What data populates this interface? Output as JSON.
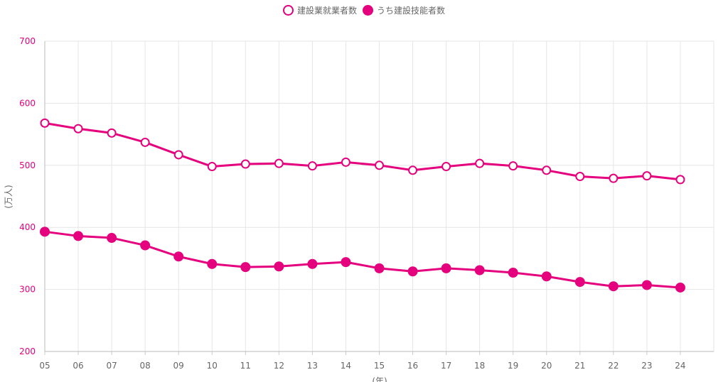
{
  "chart_data": {
    "type": "line",
    "title": "",
    "xlabel": "(年)",
    "ylabel": "(万人)",
    "categories": [
      "05",
      "06",
      "07",
      "08",
      "09",
      "10",
      "11",
      "12",
      "13",
      "14",
      "15",
      "16",
      "17",
      "18",
      "19",
      "20",
      "21",
      "22",
      "23",
      "24"
    ],
    "ylim": [
      200,
      700
    ],
    "yticks": [
      "200",
      "300",
      "400",
      "500",
      "600",
      "700"
    ],
    "grid": true,
    "legend_position": "top-center",
    "series": [
      {
        "name": "建設業就業者数",
        "marker": "open-circle",
        "color": "#e5007e",
        "values": [
          568,
          559,
          552,
          537,
          517,
          498,
          502,
          503,
          499,
          505,
          500,
          492,
          498,
          503,
          499,
          492,
          482,
          479,
          483,
          477
        ]
      },
      {
        "name": "うち建設技能者数",
        "marker": "filled-circle",
        "color": "#e5007e",
        "values": [
          393,
          386,
          383,
          371,
          353,
          341,
          336,
          337,
          341,
          344,
          334,
          329,
          334,
          331,
          327,
          321,
          312,
          305,
          307,
          303
        ]
      }
    ]
  },
  "colors": {
    "accent": "#e5007e",
    "ytick": "#e5007e",
    "xtick": "#666666",
    "grid": "#e6e6e6"
  }
}
